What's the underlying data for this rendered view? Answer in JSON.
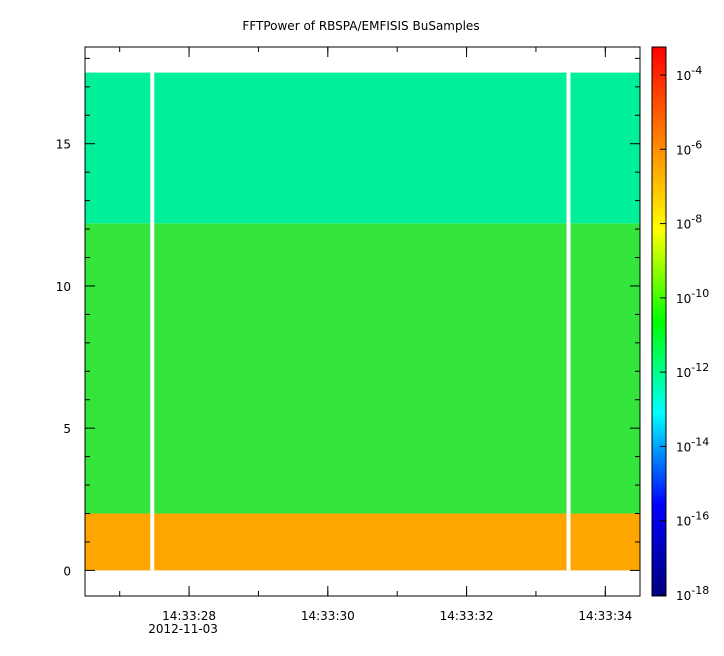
{
  "chart_data": {
    "type": "heatmap",
    "title": "FFTPower of RBSPA/EMFISIS  BuSamples",
    "xlabel": "",
    "ylabel": "",
    "x_ticks": [
      {
        "t": "14:33:28",
        "date": "2012-11-03"
      },
      {
        "t": "14:33:30",
        "date": ""
      },
      {
        "t": "14:33:32",
        "date": ""
      },
      {
        "t": "14:33:34",
        "date": ""
      }
    ],
    "x_range_seconds_of_minute": [
      26.5,
      34.5
    ],
    "y_ticks": [
      0,
      5,
      10,
      15
    ],
    "y_range": [
      -0.9,
      18.4
    ],
    "log_colorbar": true,
    "colorbar_exponents": [
      -4,
      -6,
      -8,
      -10,
      -12,
      -14,
      -16,
      -18
    ],
    "colorbar_range": [
      "1e-18",
      "1e-4"
    ],
    "colormap": [
      "#00007f",
      "#0000ff",
      "#00ffff",
      "#00ff00",
      "#ffff00",
      "#ff7f00",
      "#ff0000"
    ],
    "data_extent": {
      "x": [
        26.5,
        34.5
      ],
      "y": [
        0,
        17.5
      ]
    },
    "bands": [
      {
        "y": [
          0,
          2
        ],
        "level": "1e-8",
        "color": "#ffa500"
      },
      {
        "y": [
          2,
          12.2
        ],
        "level": "1e-10",
        "color": "#33e53a"
      },
      {
        "y": [
          12.2,
          17.5
        ],
        "level": "1e-12",
        "color": "#00f09a"
      }
    ],
    "data_gaps_seconds": [
      27.47,
      33.47
    ]
  }
}
